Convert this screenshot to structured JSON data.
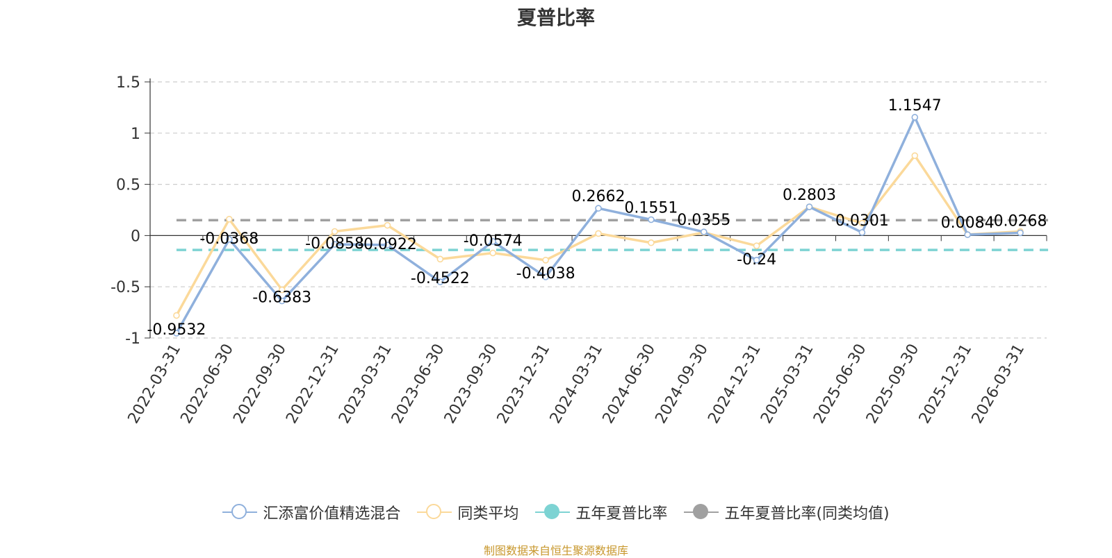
{
  "chart_data": {
    "type": "line",
    "title": "夏普比率",
    "categories": [
      "2022-03-31",
      "2022-06-30",
      "2022-09-30",
      "2022-12-31",
      "2023-03-31",
      "2023-06-30",
      "2023-09-30",
      "2023-12-31",
      "2024-03-31",
      "2024-06-30",
      "2024-09-30",
      "2024-12-31",
      "2025-03-31",
      "2025-06-30",
      "2025-09-30",
      "2025-12-31",
      "2026-03-31"
    ],
    "ylim": [
      -1,
      1.5
    ],
    "yticks": [
      1.5,
      1,
      0.5,
      0,
      -0.5,
      -1
    ],
    "yticks_labels": [
      "1.5",
      "1",
      "0.5",
      "0",
      "-0.5",
      "-1"
    ],
    "grid": true,
    "legend_position": "bottom",
    "series": [
      {
        "name": "汇添富价值精选混合",
        "color": "#8fb0dc",
        "values": [
          -0.9532,
          -0.0368,
          -0.6383,
          -0.0858,
          -0.0922,
          -0.4522,
          -0.0574,
          -0.4038,
          0.2662,
          0.1551,
          0.0355,
          -0.24,
          0.2803,
          0.0301,
          1.1547,
          0.0084,
          0.0268
        ],
        "labels": [
          "-0.9532",
          "-0.0368",
          "-0.6383",
          "-0.0858",
          "-0.0922",
          "-0.4522",
          "-0.0574",
          "-0.4038",
          "0.2662",
          "0.1551",
          "0.0355",
          "-0.24",
          "0.2803",
          "0.0301",
          "1.1547",
          "0.0084",
          "0.0268"
        ]
      },
      {
        "name": "同类平均",
        "color": "#fbd99a",
        "values": [
          -0.78,
          0.16,
          -0.53,
          0.04,
          0.1,
          -0.23,
          -0.17,
          -0.24,
          0.02,
          -0.07,
          0.03,
          -0.1,
          0.28,
          0.12,
          0.78,
          0.01,
          0.04
        ]
      }
    ],
    "reference_lines": [
      {
        "name": "五年夏普比率",
        "value": -0.14,
        "color": "#7dd3d3"
      },
      {
        "name": "五年夏普比率(同类均值)",
        "value": 0.15,
        "color": "#a0a0a0"
      }
    ]
  },
  "legend": {
    "items": [
      {
        "label": "汇添富价值精选混合",
        "color": "#8fb0dc",
        "filled": false
      },
      {
        "label": "同类平均",
        "color": "#fbd99a",
        "filled": false
      },
      {
        "label": "五年夏普比率",
        "color": "#7dd3d3",
        "filled": true
      },
      {
        "label": "五年夏普比率(同类均值)",
        "color": "#a0a0a0",
        "filled": true
      }
    ]
  },
  "footer": {
    "source": "制图数据来自恒生聚源数据库"
  }
}
